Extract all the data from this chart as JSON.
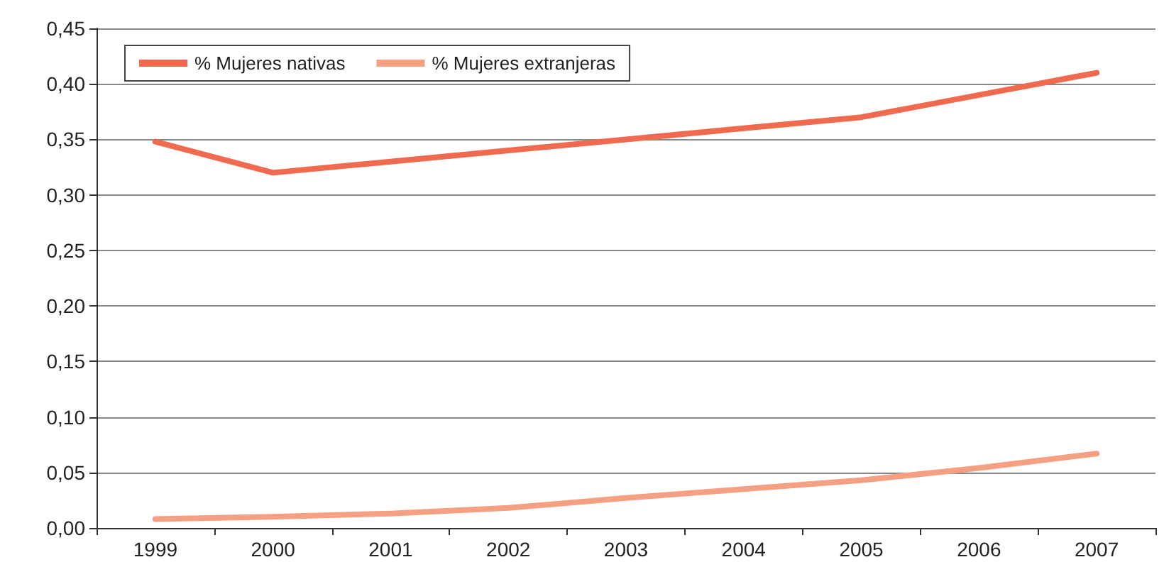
{
  "chart_data": {
    "type": "line",
    "categories": [
      "1999",
      "2000",
      "2001",
      "2002",
      "2003",
      "2004",
      "2005",
      "2006",
      "2007"
    ],
    "series": [
      {
        "name": "% Mujeres nativas",
        "color": "#ef6a4f",
        "values": [
          0.348,
          0.32,
          0.33,
          0.34,
          0.35,
          0.36,
          0.37,
          0.39,
          0.41
        ]
      },
      {
        "name": "% Mujeres extranjeras",
        "color": "#f5a083",
        "values": [
          0.008,
          0.01,
          0.013,
          0.018,
          0.027,
          0.035,
          0.043,
          0.054,
          0.067
        ]
      }
    ],
    "ylim": [
      0,
      0.45
    ],
    "yticks": [
      {
        "value": 0,
        "label": "0,00"
      },
      {
        "value": 0.05,
        "label": "0,05"
      },
      {
        "value": 0.1,
        "label": "0,10"
      },
      {
        "value": 0.15,
        "label": "0,15"
      },
      {
        "value": 0.2,
        "label": "0,20"
      },
      {
        "value": 0.25,
        "label": "0,25"
      },
      {
        "value": 0.3,
        "label": "0,30"
      },
      {
        "value": 0.35,
        "label": "0,35"
      },
      {
        "value": 0.4,
        "label": "0,40"
      },
      {
        "value": 0.45,
        "label": "0,45"
      }
    ],
    "grid": "y",
    "legend": "top left",
    "marker": "none",
    "line_style": "solid"
  }
}
